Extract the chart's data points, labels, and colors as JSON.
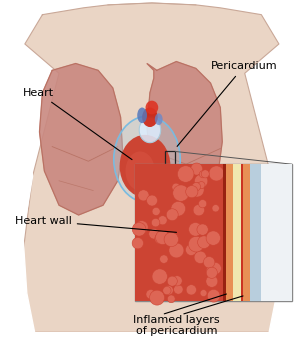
{
  "labels": {
    "heart": "Heart",
    "pericardium": "Pericardium",
    "heart_wall": "Heart wall",
    "inflamed": "Inflamed layers\nof pericardium"
  },
  "body_color": "#ead5c5",
  "body_outline": "#c9a898",
  "body_arm_color": "#e0c4b0",
  "lung_color": "#c98880",
  "lung_outline": "#b87060",
  "lung_lobe_line": "#b06858",
  "pericardium_blue": "#aaccdd",
  "heart_red": "#cc3322",
  "heart_mid": "#dd6655",
  "aorta_red": "#cc2211",
  "vessel_blue": "#6688cc",
  "vessel_white": "#ddeeff",
  "layer_orange": "#e8a055",
  "layer_cream": "#f5ecc0",
  "fluid_blue": "#c0d8e8",
  "inset_bg": "#ffffff",
  "inset_border": "#888888",
  "muscle_dark": "#aa2211",
  "bubble_face": "#dd6655",
  "bubble_edge": "#cc4433"
}
